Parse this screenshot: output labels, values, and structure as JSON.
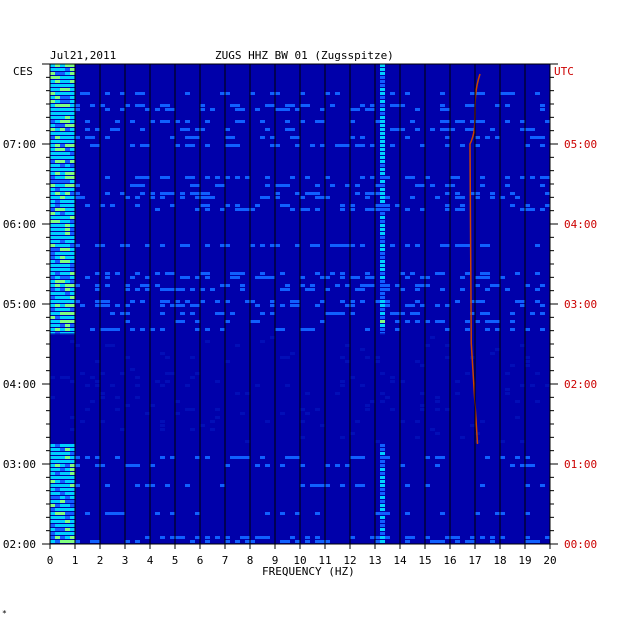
{
  "header": {
    "date": "Jul21,2011",
    "station": "ZUGS HHZ BW 01 (Zugsspitze)"
  },
  "corner": "*",
  "colors": {
    "background": "#0000aa",
    "local_time_text": "#000000",
    "utc_text": "#cc0000",
    "grid": "#000000",
    "signal_line": "#cc4400"
  },
  "chart_data": {
    "type": "heatmap",
    "title": "ZUGS HHZ BW 01 (Zugsspitze)",
    "date": "Jul21,2011",
    "xlabel": "FREQUENCY (HZ)",
    "xlim": [
      0,
      20
    ],
    "x_ticks": [
      "0",
      "1",
      "2",
      "3",
      "4",
      "5",
      "6",
      "7",
      "8",
      "9",
      "10",
      "11",
      "12",
      "13",
      "14",
      "15",
      "16",
      "17",
      "18",
      "19",
      "20"
    ],
    "left_axis": {
      "label": "CES",
      "ticks": [
        "07:00",
        "06:00",
        "05:00",
        "04:00",
        "03:00",
        "02:00"
      ]
    },
    "right_axis": {
      "label": "UTC",
      "ticks": [
        "05:00",
        "04:00",
        "03:00",
        "02:00",
        "01:00",
        "00:00"
      ]
    },
    "time_range_local": [
      "02:00",
      "08:00"
    ],
    "colormap": [
      "#0000aa",
      "#1060ff",
      "#00d0ff",
      "#80ff80",
      "#ffff00",
      "#ff6000",
      "#c00000"
    ],
    "features": {
      "broadband_low_freq_hz": [
        0,
        1
      ],
      "persistent_line_hz": 13.2,
      "drifting_line_hz": [
        16.8,
        17.2
      ],
      "gap_local_time": [
        "03:15",
        "04:38"
      ]
    }
  }
}
